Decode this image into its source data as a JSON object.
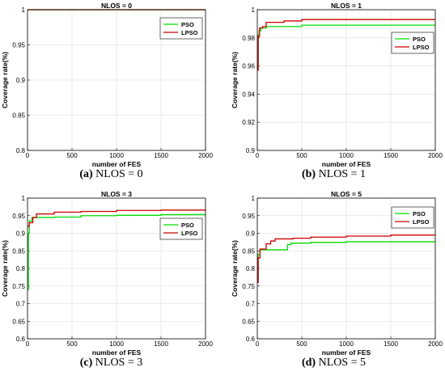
{
  "chart_data": [
    {
      "type": "line",
      "title": "NLOS = 0",
      "xlabel": "number of FES",
      "ylabel": "Coverage rate(%)",
      "xlim": [
        0,
        2000
      ],
      "ylim": [
        0.8,
        1
      ],
      "xticks": [
        "0",
        "500",
        "1000",
        "1500",
        "2000"
      ],
      "yticks": [
        "0.8",
        "0.85",
        "0.9",
        "0.95",
        "1"
      ],
      "grid": true,
      "legend": "top-right",
      "series": [
        {
          "name": "PSO",
          "color": "#00dd00",
          "points": [
            [
              0,
              1
            ],
            [
              2000,
              1
            ]
          ]
        },
        {
          "name": "LPSO",
          "color": "#cc0000",
          "points": [
            [
              0,
              1
            ],
            [
              2000,
              1
            ]
          ]
        }
      ],
      "caption": {
        "label": "(a)",
        "text": "NLOS = 0"
      }
    },
    {
      "type": "line",
      "title": "NLOS = 1",
      "xlabel": "number of FES",
      "ylabel": "Coverage rate(%)",
      "xlim": [
        0,
        2000
      ],
      "ylim": [
        0.9,
        1
      ],
      "xticks": [
        "0",
        "500",
        "1000",
        "1500",
        "2000"
      ],
      "yticks": [
        "0.9",
        "0.92",
        "0.94",
        "0.96",
        "0.98",
        "1"
      ],
      "grid": true,
      "legend": "top-right",
      "series": [
        {
          "name": "PSO",
          "color": "#00dd00",
          "points": [
            [
              0,
              0.959
            ],
            [
              10,
              0.982
            ],
            [
              20,
              0.985
            ],
            [
              40,
              0.987
            ],
            [
              100,
              0.988
            ],
            [
              300,
              0.988
            ],
            [
              500,
              0.989
            ],
            [
              1000,
              0.989
            ],
            [
              2000,
              0.989
            ]
          ]
        },
        {
          "name": "LPSO",
          "color": "#cc0000",
          "points": [
            [
              0,
              0.957
            ],
            [
              10,
              0.981
            ],
            [
              25,
              0.987
            ],
            [
              60,
              0.988
            ],
            [
              100,
              0.991
            ],
            [
              300,
              0.992
            ],
            [
              500,
              0.993
            ],
            [
              1000,
              0.993
            ],
            [
              2000,
              0.993
            ]
          ]
        }
      ],
      "caption": {
        "label": "(b)",
        "text": "NLOS = 1"
      }
    },
    {
      "type": "line",
      "title": "NLOS = 3",
      "xlabel": "number of FES",
      "ylabel": "Coverage rate(%)",
      "xlim": [
        0,
        2000
      ],
      "ylim": [
        0.6,
        1
      ],
      "xticks": [
        "0",
        "500",
        "1000",
        "1500",
        "2000"
      ],
      "yticks": [
        "0.6",
        "0.65",
        "0.7",
        "0.75",
        "0.8",
        "0.85",
        "0.9",
        "0.95",
        "1"
      ],
      "grid": true,
      "legend": "right",
      "series": [
        {
          "name": "PSO",
          "color": "#00dd00",
          "points": [
            [
              0,
              0.74
            ],
            [
              10,
              0.9
            ],
            [
              20,
              0.935
            ],
            [
              50,
              0.945
            ],
            [
              300,
              0.946
            ],
            [
              600,
              0.95
            ],
            [
              1000,
              0.951
            ],
            [
              1500,
              0.953
            ],
            [
              2000,
              0.953
            ]
          ]
        },
        {
          "name": "LPSO",
          "color": "#cc0000",
          "points": [
            [
              0,
              0.92
            ],
            [
              20,
              0.93
            ],
            [
              60,
              0.945
            ],
            [
              100,
              0.955
            ],
            [
              300,
              0.96
            ],
            [
              600,
              0.962
            ],
            [
              1000,
              0.965
            ],
            [
              1500,
              0.966
            ],
            [
              2000,
              0.967
            ]
          ]
        }
      ],
      "caption": {
        "label": "(c)",
        "text": "NLOS = 3"
      }
    },
    {
      "type": "line",
      "title": "NLOS = 5",
      "xlabel": "number of FES",
      "ylabel": "Coverage rate(%)",
      "xlim": [
        0,
        2000
      ],
      "ylim": [
        0.6,
        1
      ],
      "xticks": [
        "0",
        "500",
        "1000",
        "1500",
        "2000"
      ],
      "yticks": [
        "0.6",
        "0.65",
        "0.7",
        "0.75",
        "0.8",
        "0.85",
        "0.9",
        "0.95",
        "1"
      ],
      "grid": true,
      "legend": "top-right",
      "series": [
        {
          "name": "PSO",
          "color": "#00dd00",
          "points": [
            [
              0,
              0.775
            ],
            [
              10,
              0.84
            ],
            [
              30,
              0.853
            ],
            [
              300,
              0.853
            ],
            [
              340,
              0.868
            ],
            [
              380,
              0.872
            ],
            [
              600,
              0.874
            ],
            [
              1000,
              0.876
            ],
            [
              2000,
              0.876
            ]
          ]
        },
        {
          "name": "LPSO",
          "color": "#cc0000",
          "points": [
            [
              0,
              0.76
            ],
            [
              10,
              0.83
            ],
            [
              30,
              0.855
            ],
            [
              100,
              0.87
            ],
            [
              150,
              0.878
            ],
            [
              200,
              0.884
            ],
            [
              400,
              0.886
            ],
            [
              600,
              0.889
            ],
            [
              1000,
              0.892
            ],
            [
              1500,
              0.895
            ],
            [
              2000,
              0.895
            ]
          ]
        }
      ],
      "caption": {
        "label": "(d)",
        "text": "NLOS = 5"
      }
    }
  ]
}
